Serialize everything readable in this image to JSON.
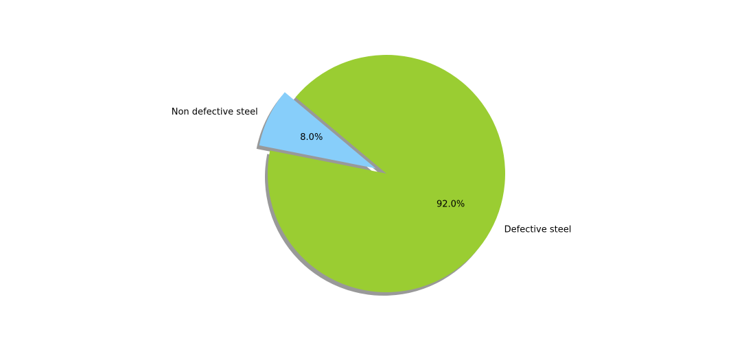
{
  "chart_data": {
    "type": "pie",
    "title": "",
    "slices": [
      {
        "label": "Non defective steel",
        "value": 8.0,
        "pct_label": "8.0%",
        "color": "#87CEFA",
        "exploded": true
      },
      {
        "label": "Defective steel",
        "value": 92.0,
        "pct_label": "92.0%",
        "color": "#9ACD32",
        "exploded": false
      }
    ],
    "start_angle_deg": 140,
    "direction": "counterclockwise",
    "shadow": true,
    "legend": "none"
  }
}
